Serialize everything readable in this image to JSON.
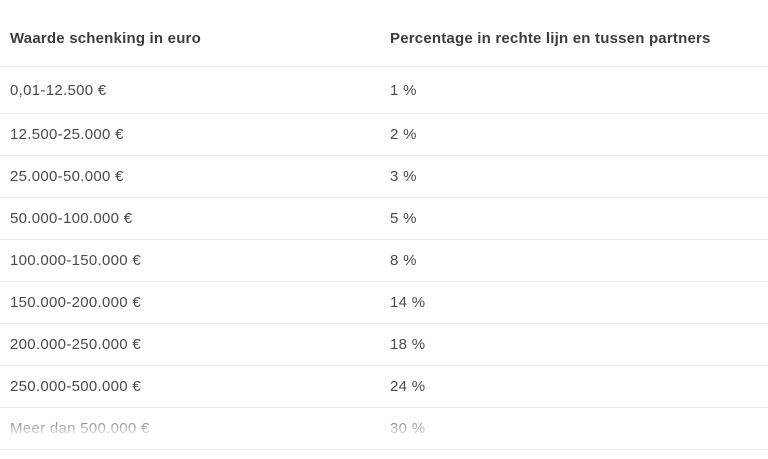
{
  "colors": {
    "background": "#ffffff",
    "header_text": "#3d3d3d",
    "body_text": "#4a4a4a",
    "divider": "#e9e9e9"
  },
  "table": {
    "headers": [
      "Waarde schenking in euro",
      "Percentage in rechte lijn en tussen partners"
    ],
    "rows": [
      {
        "range": "0,01-12.500 €",
        "percentage": "1 %"
      },
      {
        "range": "12.500-25.000 €",
        "percentage": "2 %"
      },
      {
        "range": "25.000-50.000 €",
        "percentage": "3 %"
      },
      {
        "range": "50.000-100.000 €",
        "percentage": "5 %"
      },
      {
        "range": "100.000-150.000 €",
        "percentage": "8 %"
      },
      {
        "range": "150.000-200.000 €",
        "percentage": "14 %"
      },
      {
        "range": "200.000-250.000 €",
        "percentage": "18 %"
      },
      {
        "range": "250.000-500.000 €",
        "percentage": "24 %"
      },
      {
        "range": "Meer dan 500.000 €",
        "percentage": "30 %"
      }
    ]
  }
}
